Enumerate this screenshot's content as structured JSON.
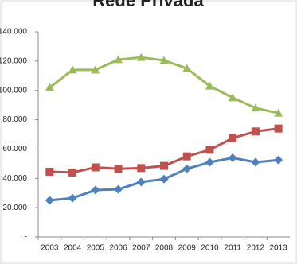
{
  "chart_data": {
    "type": "line",
    "title": "Rede Privada",
    "categories": [
      "2003",
      "2004",
      "2005",
      "2006",
      "2007",
      "2008",
      "2009",
      "2010",
      "2011",
      "2012",
      "2013"
    ],
    "series": [
      {
        "color": "#9bbb59",
        "marker": "triangle",
        "values": [
          102000,
          114000,
          114000,
          121000,
          122500,
          120500,
          115000,
          103000,
          95000,
          88000,
          84500
        ]
      },
      {
        "color": "#c0504d",
        "marker": "square",
        "values": [
          44500,
          44000,
          47500,
          46500,
          47000,
          48500,
          55000,
          59500,
          67500,
          72000,
          74000
        ]
      },
      {
        "color": "#4f81bd",
        "marker": "diamond",
        "values": [
          25000,
          26500,
          32000,
          32500,
          37500,
          39500,
          46500,
          51000,
          54000,
          51000,
          52500
        ]
      }
    ],
    "ylim": [
      0,
      140000
    ],
    "yticks": [
      {
        "value": 0,
        "label": "-"
      },
      {
        "value": 20000,
        "label": "20.000"
      },
      {
        "value": 40000,
        "label": "40.000"
      },
      {
        "value": 60000,
        "label": "60.000"
      },
      {
        "value": 80000,
        "label": "80.000"
      },
      {
        "value": 100000,
        "label": "100.000"
      },
      {
        "value": 120000,
        "label": "120.000"
      },
      {
        "value": 140000,
        "label": "140.000"
      }
    ],
    "grid": false
  }
}
